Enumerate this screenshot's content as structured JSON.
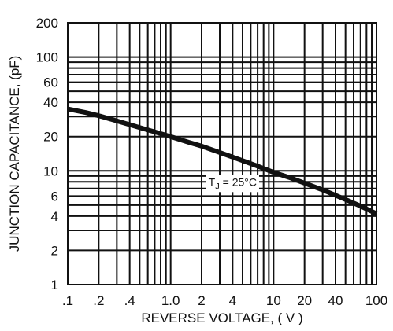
{
  "chart_data": {
    "type": "line",
    "xlabel": "REVERSE VOLTAGE, ( V )",
    "ylabel": "JUNCTION CAPACITANCE, (pF)",
    "x_scale": "log",
    "y_scale": "log",
    "xlim": [
      0.1,
      100
    ],
    "ylim": [
      1,
      200
    ],
    "x_ticks": [
      {
        "value": 0.1,
        "label": ".1"
      },
      {
        "value": 0.2,
        "label": ".2"
      },
      {
        "value": 0.4,
        "label": ".4"
      },
      {
        "value": 1,
        "label": "1.0"
      },
      {
        "value": 2,
        "label": "2"
      },
      {
        "value": 4,
        "label": "4"
      },
      {
        "value": 10,
        "label": "10"
      },
      {
        "value": 20,
        "label": "20"
      },
      {
        "value": 40,
        "label": "40"
      },
      {
        "value": 100,
        "label": "100"
      }
    ],
    "y_ticks": [
      {
        "value": 1,
        "label": "1"
      },
      {
        "value": 2,
        "label": "2"
      },
      {
        "value": 4,
        "label": "4"
      },
      {
        "value": 6,
        "label": "6"
      },
      {
        "value": 10,
        "label": "10"
      },
      {
        "value": 20,
        "label": "20"
      },
      {
        "value": 40,
        "label": "40"
      },
      {
        "value": 60,
        "label": "60"
      },
      {
        "value": 100,
        "label": "100"
      },
      {
        "value": 200,
        "label": "200"
      }
    ],
    "grid": true,
    "series": [
      {
        "x": [
          0.1,
          0.15,
          0.2,
          0.3,
          0.5,
          0.7,
          1,
          1.5,
          2,
          3,
          5,
          7,
          10,
          15,
          20,
          30,
          50,
          70,
          100
        ],
        "y": [
          35,
          32.5,
          30.5,
          27.5,
          24,
          22,
          20,
          17.8,
          16.5,
          14.5,
          12.3,
          11,
          9.7,
          8.6,
          7.8,
          6.8,
          5.6,
          4.9,
          4.2
        ]
      }
    ],
    "annotation": {
      "prefix": "T",
      "subscript": "J",
      "suffix": " = 25°C",
      "x": 4,
      "y": 8
    }
  }
}
